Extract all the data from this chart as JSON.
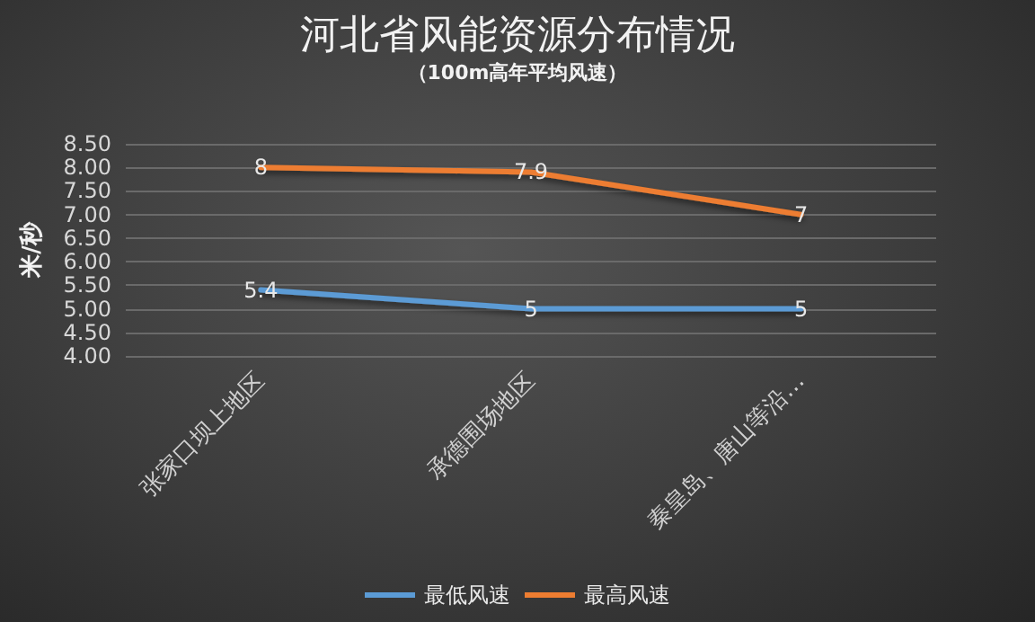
{
  "chart_data": {
    "type": "line",
    "title": "河北省风能资源分布情况",
    "subtitle": "（100m高年平均风速）",
    "ylabel": "米/秒",
    "categories": [
      "张家口坝上地区",
      "承德围场地区",
      "秦皇岛、唐山等沿…"
    ],
    "series": [
      {
        "name": "最低风速",
        "color": "#5b9bd5",
        "values": [
          5.4,
          5,
          5
        ]
      },
      {
        "name": "最高风速",
        "color": "#ed7d31",
        "values": [
          8,
          7.9,
          7
        ]
      }
    ],
    "ylim": [
      4,
      8.5
    ],
    "yticks": [
      {
        "value": 4,
        "label": "4.00"
      },
      {
        "value": 4.5,
        "label": "4.50"
      },
      {
        "value": 5,
        "label": "5.00"
      },
      {
        "value": 5.5,
        "label": "5.50"
      },
      {
        "value": 6,
        "label": "6.00"
      },
      {
        "value": 6.5,
        "label": "6.50"
      },
      {
        "value": 7,
        "label": "7.00"
      },
      {
        "value": 7.5,
        "label": "7.50"
      },
      {
        "value": 8,
        "label": "8.00"
      },
      {
        "value": 8.5,
        "label": "8.50"
      }
    ],
    "grid": "y",
    "legend": "bottom",
    "marker": "none",
    "line_style": "solid",
    "data_labels": true
  }
}
